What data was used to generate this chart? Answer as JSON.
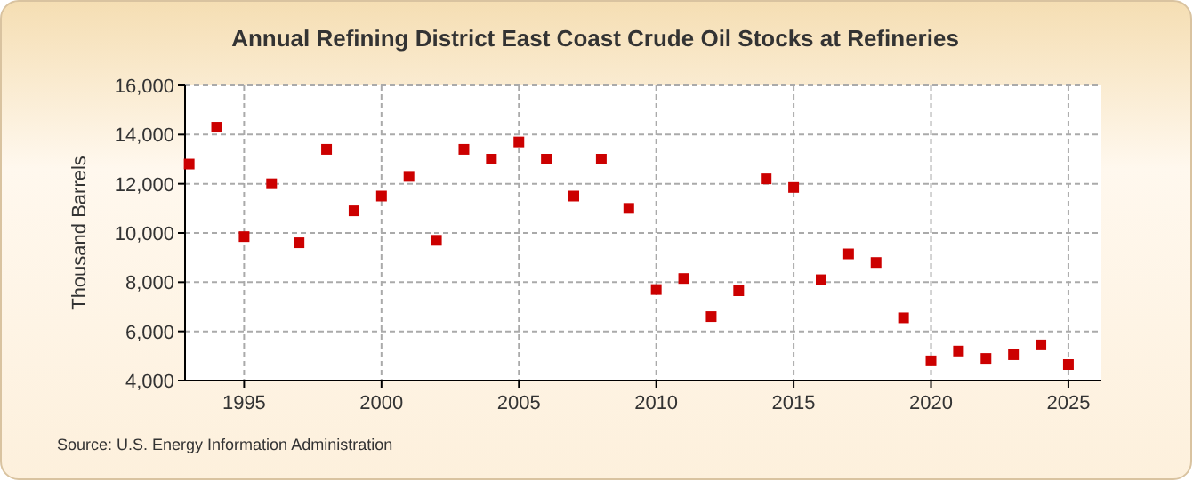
{
  "chart_data": {
    "type": "scatter",
    "title": "Annual Refining District East Coast Crude Oil Stocks at Refineries",
    "ylabel": "Thousand Barrels",
    "annotations": [
      "Source: U.S. Energy Information Administration"
    ],
    "x": [
      1993,
      1994,
      1995,
      1996,
      1997,
      1998,
      1999,
      2000,
      2001,
      2002,
      2003,
      2004,
      2005,
      2006,
      2007,
      2008,
      2009,
      2010,
      2011,
      2012,
      2013,
      2014,
      2015,
      2016,
      2017,
      2018,
      2019,
      2020,
      2021,
      2022,
      2023,
      2024,
      2025
    ],
    "series": [
      {
        "color": "#cc0000",
        "values": [
          12800,
          14300,
          9850,
          12000,
          9600,
          13400,
          10900,
          11500,
          12300,
          9700,
          13400,
          13000,
          13700,
          13000,
          11500,
          13000,
          11000,
          7700,
          8150,
          6600,
          7650,
          12200,
          11850,
          8100,
          9150,
          8800,
          6550,
          4800,
          5200,
          4900,
          5050,
          5450,
          4650
        ]
      }
    ],
    "xlim": [
      1992.85,
      2026.2
    ],
    "xticks": [
      1995,
      2000,
      2005,
      2010,
      2015,
      2020,
      2025
    ],
    "ylim": [
      4000,
      16000
    ],
    "yticks": [
      {
        "value": 4000,
        "label": "4,000"
      },
      {
        "value": 6000,
        "label": "6,000"
      },
      {
        "value": 8000,
        "label": "8,000"
      },
      {
        "value": 10000,
        "label": "10,000"
      },
      {
        "value": 12000,
        "label": "12,000"
      },
      {
        "value": 14000,
        "label": "14,000"
      },
      {
        "value": 16000,
        "label": "16,000"
      }
    ],
    "grid": true,
    "marker": "square"
  }
}
